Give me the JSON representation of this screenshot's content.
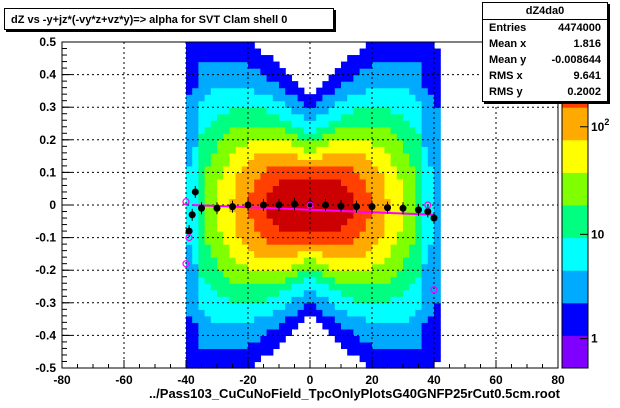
{
  "chart_data": {
    "type": "heatmap",
    "title": "dZ vs -y+jz*(-vy*z+vz*y)=> alpha for SVT Clam shell 0",
    "xlabel": "../Pass103_CuCuNoField_TpcOnlyPlotsG40GNFP25rCut0.5cm.root",
    "ylabel": "",
    "xlim": [
      -80,
      80
    ],
    "ylim": [
      -0.5,
      0.5
    ],
    "x_ticks": [
      "-80",
      "-60",
      "-40",
      "-20",
      "0",
      "20",
      "40",
      "60",
      "80"
    ],
    "y_ticks": [
      "0.5",
      "0.4",
      "0.3",
      "0.2",
      "0.1",
      "0",
      "-0.1",
      "-0.2",
      "-0.3",
      "-0.4",
      "-0.5"
    ],
    "z_scale": "log",
    "z_ticks": [
      "10^2",
      "10",
      "1"
    ],
    "grid": true,
    "profile_points": [
      {
        "x": -39,
        "y": -0.08
      },
      {
        "x": -38,
        "y": -0.03
      },
      {
        "x": -37,
        "y": 0.04
      },
      {
        "x": -35,
        "y": -0.01
      },
      {
        "x": -30,
        "y": -0.01
      },
      {
        "x": -25,
        "y": -0.005
      },
      {
        "x": -20,
        "y": 0.0
      },
      {
        "x": -15,
        "y": 0.0
      },
      {
        "x": -10,
        "y": 0.0
      },
      {
        "x": -5,
        "y": 0.003
      },
      {
        "x": 0,
        "y": 0.003
      },
      {
        "x": 5,
        "y": 0.0
      },
      {
        "x": 10,
        "y": -0.003
      },
      {
        "x": 15,
        "y": -0.005
      },
      {
        "x": 20,
        "y": -0.005
      },
      {
        "x": 25,
        "y": -0.008
      },
      {
        "x": 30,
        "y": -0.01
      },
      {
        "x": 35,
        "y": -0.015
      },
      {
        "x": 38,
        "y": -0.02
      },
      {
        "x": 40,
        "y": -0.04
      }
    ],
    "fit_line": {
      "x": [
        -38,
        40
      ],
      "y": [
        0.0,
        -0.03
      ]
    },
    "magenta_points": [
      {
        "x": -40,
        "y": 0.01
      },
      {
        "x": -40,
        "y": -0.18
      },
      {
        "x": -39,
        "y": -0.1
      },
      {
        "x": 0,
        "y": 0.0
      },
      {
        "x": 38,
        "y": 0.0
      },
      {
        "x": 40,
        "y": -0.26
      }
    ],
    "colors": {
      "profile": "#000000",
      "magenta": "#ff00ff",
      "palette": [
        "#8000ff",
        "#0000ff",
        "#00aaff",
        "#00ffff",
        "#00ff80",
        "#80ff00",
        "#ffff00",
        "#ffaa00",
        "#ff4000",
        "#cc0000"
      ]
    }
  },
  "stats": {
    "name": "dZ4da0",
    "rows": [
      {
        "label": "Entries",
        "value": "4474000"
      },
      {
        "label": "Mean x",
        "value": "1.816"
      },
      {
        "label": "Mean y",
        "value": "-0.008644"
      },
      {
        "label": "RMS x",
        "value": "9.641"
      },
      {
        "label": "RMS y",
        "value": "0.2002"
      }
    ]
  }
}
